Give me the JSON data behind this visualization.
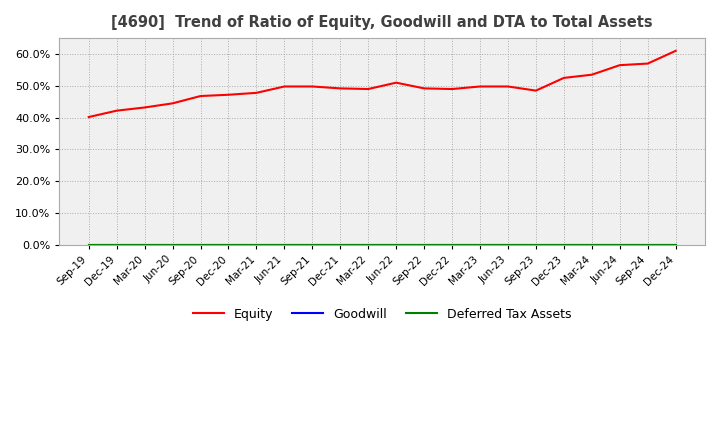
{
  "title": "[4690]  Trend of Ratio of Equity, Goodwill and DTA to Total Assets",
  "x_labels": [
    "Sep-19",
    "Dec-19",
    "Mar-20",
    "Jun-20",
    "Sep-20",
    "Dec-20",
    "Mar-21",
    "Jun-21",
    "Sep-21",
    "Dec-21",
    "Mar-22",
    "Jun-22",
    "Sep-22",
    "Dec-22",
    "Mar-23",
    "Jun-23",
    "Sep-23",
    "Dec-23",
    "Mar-24",
    "Jun-24",
    "Sep-24",
    "Dec-24"
  ],
  "equity": [
    40.2,
    42.2,
    43.2,
    44.5,
    46.8,
    47.2,
    47.8,
    49.8,
    49.8,
    49.2,
    49.0,
    51.0,
    49.2,
    49.0,
    49.8,
    49.8,
    48.5,
    52.5,
    53.5,
    56.5,
    57.0,
    61.0
  ],
  "goodwill": [
    0.0,
    0.0,
    0.0,
    0.0,
    0.0,
    0.0,
    0.0,
    0.0,
    0.0,
    0.0,
    0.0,
    0.0,
    0.0,
    0.0,
    0.0,
    0.0,
    0.0,
    0.0,
    0.0,
    0.0,
    0.0,
    0.0
  ],
  "dta": [
    0.0,
    0.0,
    0.0,
    0.0,
    0.0,
    0.0,
    0.0,
    0.0,
    0.0,
    0.0,
    0.0,
    0.0,
    0.0,
    0.0,
    0.0,
    0.0,
    0.0,
    0.0,
    0.0,
    0.0,
    0.0,
    0.0
  ],
  "equity_color": "#FF0000",
  "goodwill_color": "#0000FF",
  "dta_color": "#008000",
  "ylim": [
    0.0,
    65.0
  ],
  "yticks": [
    0.0,
    10.0,
    20.0,
    30.0,
    40.0,
    50.0,
    60.0
  ],
  "background_color": "#FFFFFF",
  "plot_bg_color": "#F0F0F0",
  "grid_color": "#AAAAAA",
  "title_color": "#404040",
  "legend_labels": [
    "Equity",
    "Goodwill",
    "Deferred Tax Assets"
  ]
}
